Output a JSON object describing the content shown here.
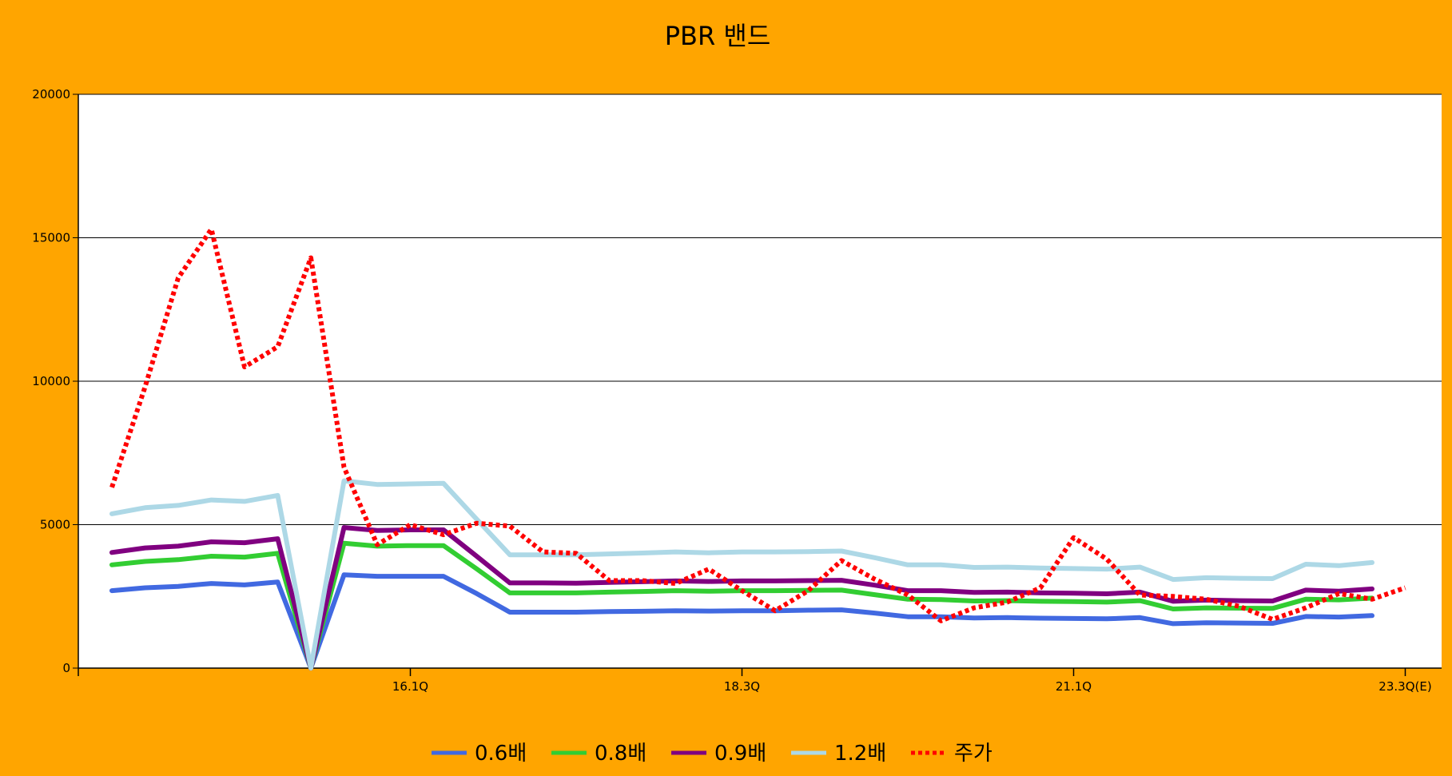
{
  "chart_data": {
    "type": "line",
    "title": "PBR 밴드",
    "xlabel": "",
    "ylabel": "",
    "ylim": [
      0,
      20000
    ],
    "yticks": [
      0,
      5000,
      10000,
      15000,
      20000
    ],
    "ytick_labels": [
      "0",
      "5000",
      "10000",
      "15000",
      "20000"
    ],
    "xtick_labels": [
      {
        "index": 9,
        "label": "16.1Q"
      },
      {
        "index": 19,
        "label": "18.3Q"
      },
      {
        "index": 29,
        "label": "21.1Q"
      },
      {
        "index": 39,
        "label": "23.3Q(E)"
      }
    ],
    "grid": "horizontal",
    "legend_position": "bottom",
    "series": [
      {
        "name": "0.6배",
        "color": "#4169E1",
        "dash": "solid",
        "values": [
          2700,
          2800,
          2850,
          2950,
          2900,
          3000,
          0,
          3250,
          3200,
          3200,
          3200,
          2600,
          1950,
          1950,
          1950,
          1970,
          1980,
          2000,
          1990,
          2000,
          2000,
          2020,
          2030,
          1920,
          1790,
          1790,
          1750,
          1760,
          1740,
          1730,
          1720,
          1760,
          1550,
          1580,
          1570,
          1560,
          1800,
          1780,
          1830,
          null
        ]
      },
      {
        "name": "0.8배",
        "color": "#32CD32",
        "dash": "solid",
        "values": [
          3600,
          3720,
          3780,
          3900,
          3870,
          4000,
          0,
          4350,
          4250,
          4270,
          4270,
          3460,
          2620,
          2620,
          2620,
          2650,
          2670,
          2700,
          2680,
          2700,
          2700,
          2710,
          2720,
          2560,
          2400,
          2390,
          2340,
          2350,
          2330,
          2320,
          2300,
          2350,
          2060,
          2100,
          2090,
          2080,
          2400,
          2380,
          2440,
          null
        ]
      },
      {
        "name": "0.9배",
        "color": "#800080",
        "dash": "solid",
        "values": [
          4030,
          4190,
          4250,
          4400,
          4370,
          4510,
          0,
          4900,
          4800,
          4820,
          4820,
          3900,
          2970,
          2970,
          2960,
          2990,
          3010,
          3040,
          3020,
          3040,
          3040,
          3050,
          3060,
          2890,
          2700,
          2700,
          2640,
          2650,
          2620,
          2610,
          2590,
          2650,
          2330,
          2370,
          2350,
          2340,
          2720,
          2680,
          2760,
          null
        ]
      },
      {
        "name": "1.2배",
        "color": "#ADD8E6",
        "dash": "solid",
        "values": [
          5380,
          5590,
          5670,
          5860,
          5810,
          6020,
          0,
          6530,
          6400,
          6420,
          6440,
          5190,
          3950,
          3950,
          3950,
          3980,
          4010,
          4050,
          4020,
          4050,
          4050,
          4060,
          4080,
          3850,
          3600,
          3600,
          3510,
          3520,
          3490,
          3470,
          3450,
          3520,
          3090,
          3150,
          3130,
          3120,
          3620,
          3570,
          3680,
          null
        ]
      },
      {
        "name": "주가",
        "color": "#FF0000",
        "dash": "dotted",
        "values": [
          6300,
          9800,
          13600,
          15300,
          10500,
          11200,
          14300,
          7000,
          4300,
          5000,
          4650,
          5050,
          4950,
          4050,
          4000,
          3050,
          3050,
          2950,
          3450,
          2700,
          2000,
          2700,
          3750,
          3100,
          2550,
          1650,
          2100,
          2300,
          2800,
          4550,
          3800,
          2550,
          2500,
          2400,
          2150,
          1700,
          2100,
          2600,
          2400,
          2800
        ]
      }
    ]
  }
}
